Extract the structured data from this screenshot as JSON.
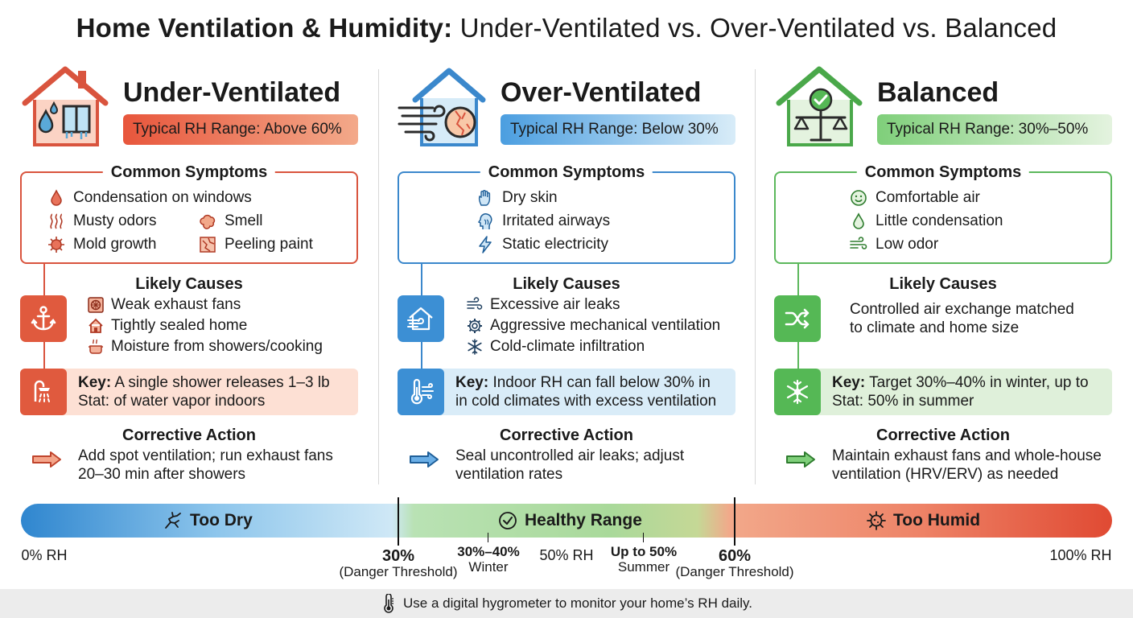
{
  "title": {
    "bold": "Home Ventilation & Humidity:",
    "rest": " Under-Ventilated vs. Over-Ventilated vs. Balanced"
  },
  "colors": {
    "under": "#e05a3e",
    "over": "#3c8fd4",
    "balanced": "#55b855"
  },
  "columns": [
    {
      "heading": "Under-Ventilated",
      "rh_range": "Typical RH Range: Above 60%",
      "symptoms_label": "Common Symptoms",
      "symptoms": [
        {
          "text": "Condensation on windows",
          "icon": "droplet-icon"
        },
        {
          "text": "Musty odors",
          "icon": "odor-waves-icon"
        },
        {
          "text": "Smell",
          "icon": "smell-cloud-icon"
        },
        {
          "text": "Mold growth",
          "icon": "mold-icon"
        },
        {
          "text": "Peeling paint",
          "icon": "peeling-paint-icon"
        }
      ],
      "causes_label": "Likely Causes",
      "cause_icon": "anchor-icon",
      "causes": [
        {
          "text": "Weak exhaust fans",
          "icon": "fan-icon"
        },
        {
          "text": "Tightly sealed home",
          "icon": "home-icon"
        },
        {
          "text": "Moisture from showers/cooking",
          "icon": "pot-icon"
        }
      ],
      "key_icon": "shower-icon",
      "key_label": "Key:",
      "key_line1": " A single shower releases 1–3 lb",
      "key_line2": "Stat: of water vapor indoors",
      "action_label": "Corrective Action",
      "action_line1": "Add spot ventilation; run exhaust fans",
      "action_line2": "20–30 min after showers"
    },
    {
      "heading": "Over-Ventilated",
      "rh_range": "Typical RH Range: Below 30%",
      "symptoms_label": "Common Symptoms",
      "symptoms": [
        {
          "text": "Dry skin",
          "icon": "hand-icon"
        },
        {
          "text": "Irritated airways",
          "icon": "head-airways-icon"
        },
        {
          "text": "Static electricity",
          "icon": "lightning-icon"
        }
      ],
      "causes_label": "Likely Causes",
      "cause_icon": "house-draft-icon",
      "causes": [
        {
          "text": "Excessive air leaks",
          "icon": "wind-icon"
        },
        {
          "text": "Aggressive mechanical ventilation",
          "icon": "gear-icon"
        },
        {
          "text": "Cold-climate infiltration",
          "icon": "snowflake-icon"
        }
      ],
      "key_icon": "thermometer-wind-icon",
      "key_label": "Key:",
      "key_line1": " Indoor RH can fall below 30% in",
      "key_line2": "in cold climates with excess ventilation",
      "action_label": "Corrective Action",
      "action_line1": "Seal uncontrolled air leaks; adjust",
      "action_line2": "ventilation rates"
    },
    {
      "heading": "Balanced",
      "rh_range": "Typical RH Range: 30%–50%",
      "symptoms_label": "Common Symptoms",
      "symptoms": [
        {
          "text": "Comfortable air",
          "icon": "smile-icon"
        },
        {
          "text": "Little condensation",
          "icon": "droplet-icon"
        },
        {
          "text": "Low odor",
          "icon": "wind-icon"
        }
      ],
      "causes_label": "Likely Causes",
      "cause_icon": "shuffle-icon",
      "cause_line1": "Controlled air exchange matched",
      "cause_line2": "to climate and home size",
      "key_icon": "sun-snowflake-icon",
      "key_label": "Key:",
      "key_line1": " Target 30%–40% in winter, up to",
      "key_line2": "Stat: 50% in summer",
      "action_label": "Corrective Action",
      "action_line1": "Maintain exhaust fans and whole-house",
      "action_line2": "ventilation (HRV/ERV) as needed"
    }
  ],
  "scale": {
    "zones": [
      {
        "label": "Too Dry",
        "icon": "crack-icon"
      },
      {
        "label": "Healthy Range",
        "icon": "check-circle-icon"
      },
      {
        "label": "Too Humid",
        "icon": "virus-icon"
      }
    ],
    "labels": {
      "min": "0% RH",
      "t30": "30%",
      "t30_note": "(Danger Threshold)",
      "winter_range": "30%–40%",
      "winter": "Winter",
      "mid": "50% RH",
      "summer_range": "Up to 50%",
      "summer": "Summer",
      "t60": "60%",
      "t60_note": "(Danger Threshold)",
      "max": "100% RH"
    }
  },
  "footer": {
    "text": "Use a digital hygrometer to monitor your home’s RH daily.",
    "icon": "thermometer-icon"
  }
}
